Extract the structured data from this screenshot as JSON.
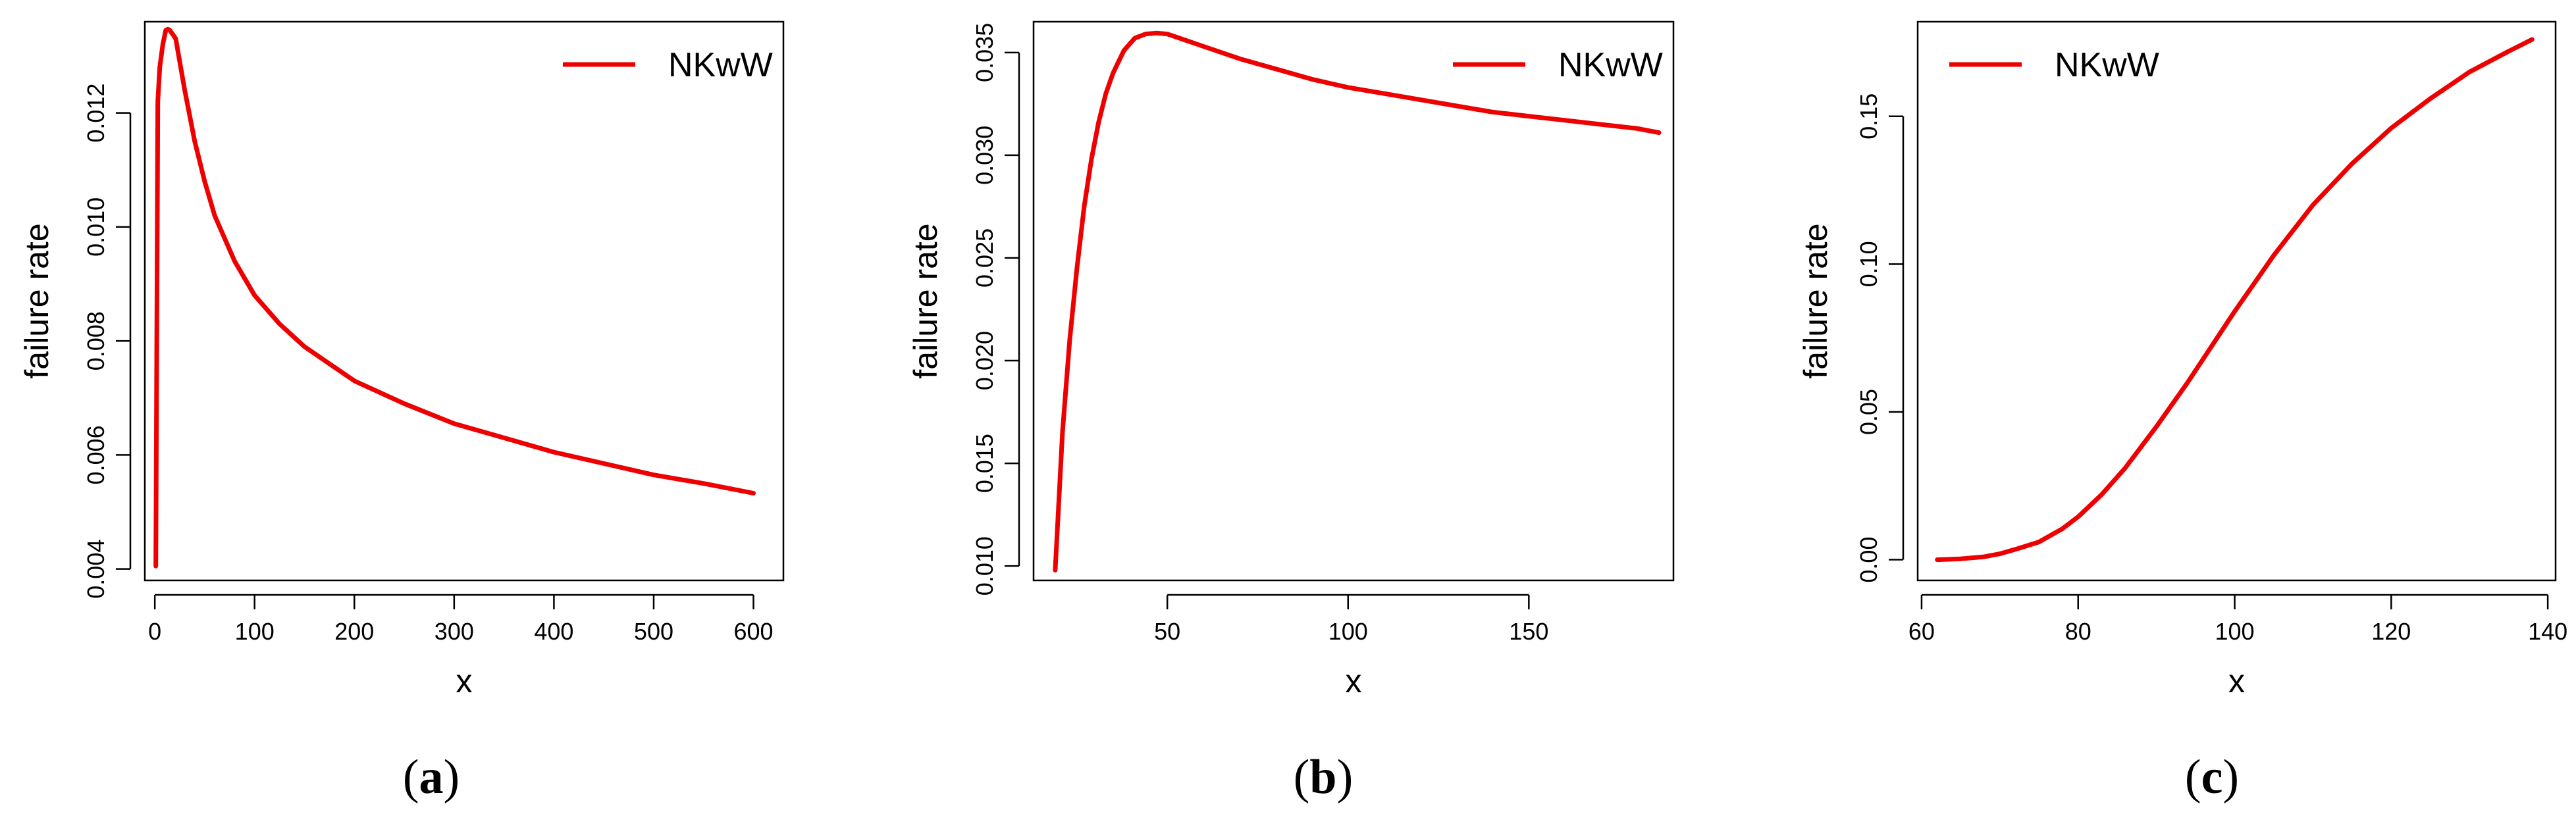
{
  "chart_data": [
    {
      "type": "line",
      "caption": "(a)",
      "caption_letter": "a",
      "xlabel": "x",
      "ylabel": "failure rate",
      "xlim": [
        -10,
        630
      ],
      "ylim": [
        0.0038,
        0.0136
      ],
      "xticks": [
        0,
        100,
        200,
        300,
        400,
        500,
        600
      ],
      "xtick_labels": [
        "0",
        "100",
        "200",
        "300",
        "400",
        "500",
        "600"
      ],
      "yticks": [
        0.004,
        0.006,
        0.008,
        0.01,
        0.012
      ],
      "ytick_labels": [
        "0.004",
        "0.006",
        "0.008",
        "0.010",
        "0.012"
      ],
      "grid": false,
      "legend": {
        "position": "top-right",
        "entries": [
          "NKwW"
        ]
      },
      "series": [
        {
          "name": "NKwW",
          "color": "#ee0000",
          "x": [
            1,
            3,
            5,
            8,
            11,
            13,
            15,
            18,
            21,
            25,
            30,
            40,
            50,
            60,
            80,
            100,
            125,
            150,
            200,
            250,
            300,
            350,
            400,
            450,
            500,
            550,
            600
          ],
          "y": [
            0.00405,
            0.0122,
            0.0128,
            0.0132,
            0.01345,
            0.01347,
            0.01345,
            0.01338,
            0.0133,
            0.0129,
            0.0124,
            0.0115,
            0.0108,
            0.0102,
            0.0094,
            0.0088,
            0.0083,
            0.0079,
            0.0073,
            0.0069,
            0.00655,
            0.0063,
            0.00605,
            0.00585,
            0.00565,
            0.0055,
            0.00533
          ]
        }
      ]
    },
    {
      "type": "line",
      "caption": "(b)",
      "caption_letter": "b",
      "xlabel": "x",
      "ylabel": "failure rate",
      "xlim": [
        13,
        190
      ],
      "ylim": [
        0.0093,
        0.0365
      ],
      "xticks": [
        50,
        100,
        150
      ],
      "xtick_labels": [
        "50",
        "100",
        "150"
      ],
      "yticks": [
        0.01,
        0.015,
        0.02,
        0.025,
        0.03,
        0.035
      ],
      "ytick_labels": [
        "0.010",
        "0.015",
        "0.020",
        "0.025",
        "0.030",
        "0.035"
      ],
      "grid": false,
      "legend": {
        "position": "top-right",
        "entries": [
          "NKwW"
        ]
      },
      "series": [
        {
          "name": "NKwW",
          "color": "#ee0000",
          "x": [
            19,
            21,
            23,
            25,
            27,
            29,
            31,
            33,
            35,
            38,
            41,
            44,
            47,
            50,
            55,
            60,
            70,
            80,
            90,
            100,
            110,
            120,
            130,
            140,
            150,
            160,
            170,
            180,
            186
          ],
          "y": [
            0.0098,
            0.0165,
            0.021,
            0.0245,
            0.0275,
            0.0298,
            0.0316,
            0.033,
            0.034,
            0.0351,
            0.0357,
            0.0359,
            0.03595,
            0.0359,
            0.0356,
            0.0353,
            0.0347,
            0.0342,
            0.0337,
            0.0333,
            0.033,
            0.0327,
            0.0324,
            0.0321,
            0.0319,
            0.0317,
            0.0315,
            0.0313,
            0.0311
          ]
        }
      ]
    },
    {
      "type": "line",
      "caption": "(c)",
      "caption_letter": "c",
      "xlabel": "x",
      "ylabel": "failure rate",
      "xlim": [
        59.5,
        141
      ],
      "ylim": [
        -0.007,
        0.182
      ],
      "xticks": [
        60,
        80,
        100,
        120,
        140
      ],
      "xtick_labels": [
        "60",
        "80",
        "100",
        "120",
        "140"
      ],
      "yticks": [
        0.0,
        0.05,
        0.1,
        0.15
      ],
      "ytick_labels": [
        "0.00",
        "0.05",
        "0.10",
        "0.15"
      ],
      "grid": false,
      "legend": {
        "position": "top-left",
        "entries": [
          "NKwW"
        ]
      },
      "series": [
        {
          "name": "NKwW",
          "color": "#ee0000",
          "x": [
            62,
            65,
            68,
            70,
            72,
            75,
            78,
            80,
            83,
            86,
            90,
            94,
            98,
            100,
            105,
            110,
            115,
            120,
            125,
            130,
            135,
            138
          ],
          "y": [
            0.0,
            0.0003,
            0.001,
            0.002,
            0.0035,
            0.006,
            0.0105,
            0.0145,
            0.022,
            0.031,
            0.045,
            0.06,
            0.076,
            0.084,
            0.103,
            0.12,
            0.134,
            0.146,
            0.156,
            0.165,
            0.172,
            0.176
          ]
        }
      ]
    }
  ]
}
